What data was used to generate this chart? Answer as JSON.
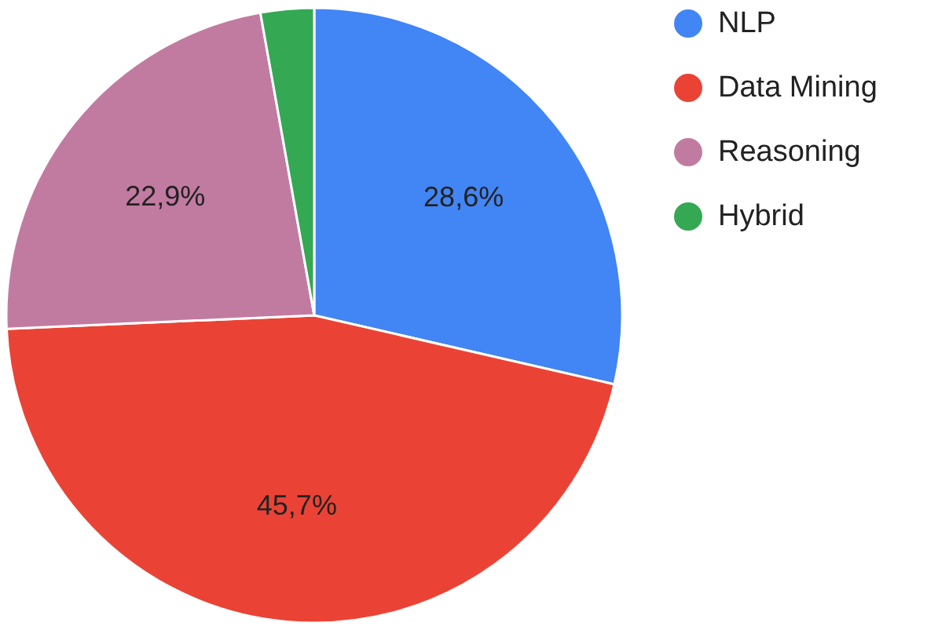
{
  "chart_data": {
    "type": "pie",
    "categories": [
      "NLP",
      "Data Mining",
      "Reasoning",
      "Hybrid"
    ],
    "values": [
      28.6,
      45.7,
      22.9,
      2.8
    ],
    "colors": [
      "#4285f4",
      "#ea4335",
      "#c27ba0",
      "#34a853"
    ],
    "value_labels": [
      "28,6%",
      "45,7%",
      "22,9%",
      null
    ],
    "legend": "top right"
  }
}
